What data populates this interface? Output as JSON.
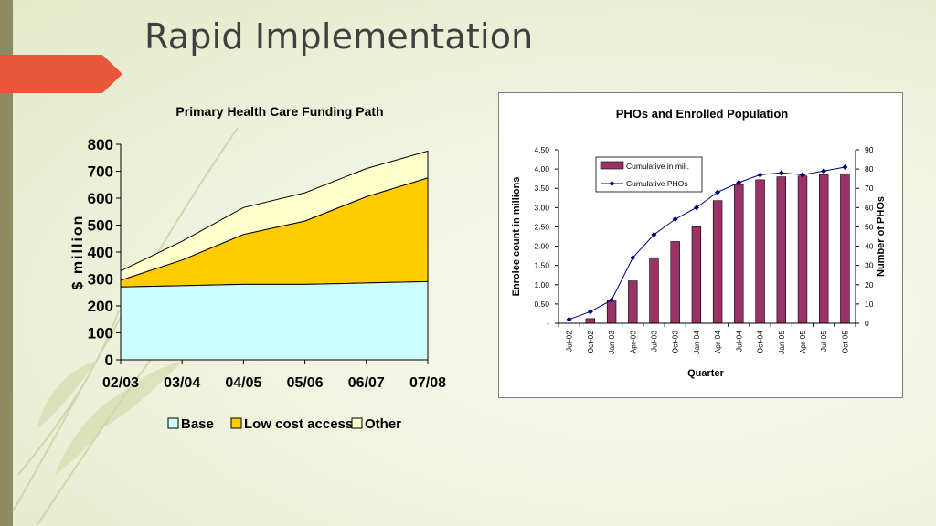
{
  "slide": {
    "title": "Rapid Implementation"
  },
  "colors": {
    "base": "#ccffff",
    "low_cost": "#ffcc00",
    "other": "#ffffcc",
    "bar": "#993366",
    "line": "#000080",
    "accent": "#e8573a"
  },
  "chart_data": [
    {
      "type": "area",
      "title": "Primary Health Care Funding Path",
      "ylabel": "$ million",
      "xlabel": "",
      "ylim": [
        0,
        800
      ],
      "yticks": [
        "0",
        "100",
        "200",
        "300",
        "400",
        "500",
        "600",
        "700",
        "800"
      ],
      "categories": [
        "02/03",
        "03/04",
        "04/05",
        "05/06",
        "06/07",
        "07/08"
      ],
      "stacked": true,
      "series": [
        {
          "name": "Base",
          "values": [
            270,
            275,
            280,
            280,
            285,
            290
          ]
        },
        {
          "name": "Low cost access",
          "values": [
            25,
            95,
            185,
            235,
            320,
            385
          ]
        },
        {
          "name": "Other",
          "values": [
            35,
            70,
            100,
            105,
            105,
            100
          ]
        }
      ],
      "legend_position": "bottom"
    },
    {
      "type": "bar",
      "title": "PHOs and Enrolled Population",
      "xlabel": "Quarter",
      "ylabel": "Enrolee count in millions",
      "y2label": "Number of PHOs",
      "ylim": [
        0,
        4.5
      ],
      "y2lim": [
        0,
        90
      ],
      "yticks": [
        "-",
        "0.50",
        "1.00",
        "1.50",
        "2.00",
        "2.50",
        "3.00",
        "3.50",
        "4.00",
        "4.50"
      ],
      "y2ticks": [
        "0",
        "10",
        "20",
        "30",
        "40",
        "50",
        "60",
        "70",
        "80",
        "90"
      ],
      "categories": [
        "Jul-02",
        "Oct-02",
        "Jan-03",
        "Apr-03",
        "Jul-03",
        "Oct-03",
        "Jan-04",
        "Apr-04",
        "Jul-04",
        "Oct-04",
        "Jan-05",
        "Apr-05",
        "Jul-05",
        "Oct-05"
      ],
      "series": [
        {
          "name": "Cumulative in mill.",
          "type": "bar",
          "axis": "left",
          "values": [
            0.0,
            0.12,
            0.6,
            1.1,
            1.7,
            2.12,
            2.5,
            3.18,
            3.6,
            3.72,
            3.8,
            3.82,
            3.86,
            3.88
          ]
        },
        {
          "name": "Cumulative PHOs",
          "type": "line",
          "axis": "right",
          "values": [
            2,
            6,
            12,
            34,
            46,
            54,
            60,
            68,
            73,
            77,
            78,
            77,
            79,
            81
          ]
        }
      ],
      "legend_position": "top-right"
    }
  ]
}
